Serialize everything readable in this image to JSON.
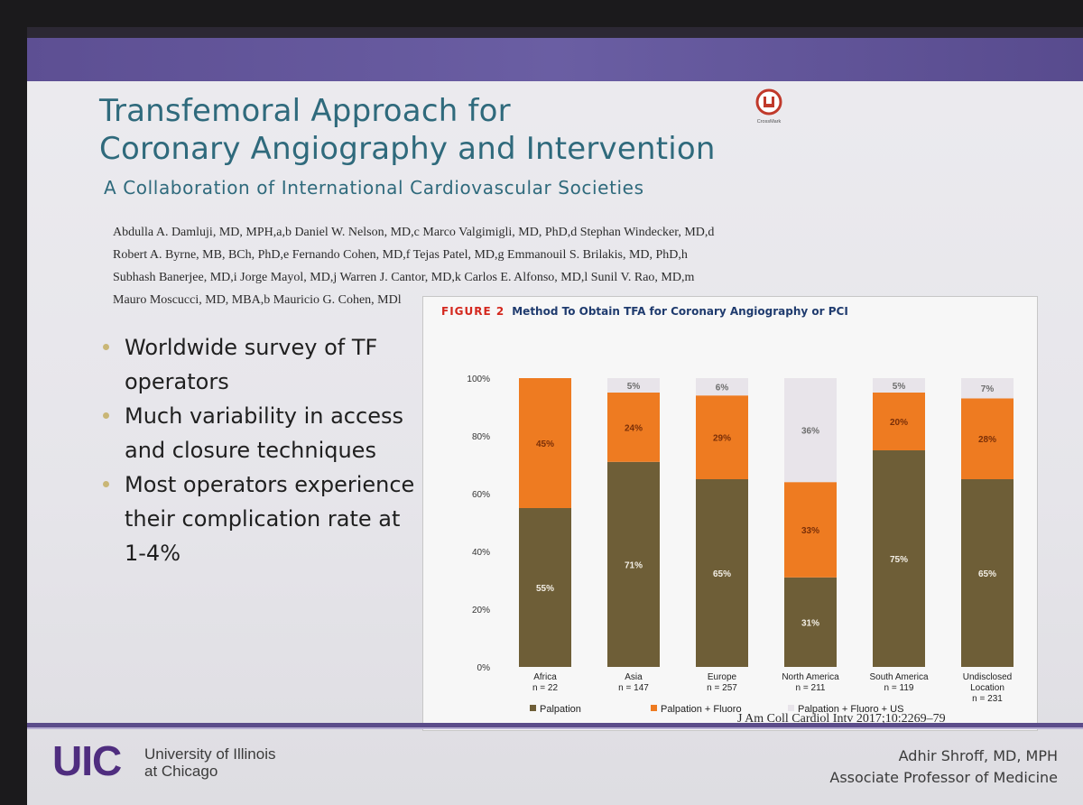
{
  "slide": {
    "title_line1": "Transfemoral Approach for",
    "title_line2": "Coronary Angiography and Intervention",
    "subtitle": "A Collaboration of International Cardiovascular Societies",
    "crossmark_label": "CrossMark",
    "authors": [
      "Abdulla A. Damluji, MD, MPH,a,b Daniel W. Nelson, MD,c Marco Valgimigli, MD, PhD,d Stephan Windecker, MD,d",
      "Robert A. Byrne, MB, BCh, PhD,e Fernando Cohen, MD,f Tejas Patel, MD,g Emmanouil S. Brilakis, MD, PhD,h",
      "Subhash Banerjee, MD,i Jorge Mayol, MD,j Warren J. Cantor, MD,k Carlos E. Alfonso, MD,l Sunil V. Rao, MD,m",
      "Mauro Moscucci, MD, MBA,b Mauricio G. Cohen, MDl"
    ],
    "bullets": [
      "Worldwide survey of TF operators",
      "Much variability in access and closure techniques",
      "Most operators experience their complication rate at 1-4%"
    ],
    "figure_label": "FIGURE 2",
    "figure_title": "Method To Obtain TFA for Coronary Angiography or PCI",
    "citation": "J Am Coll Cardiol Intv 2017;10:2269–79"
  },
  "footer": {
    "logo": "UIC",
    "university_line1": "University of Illinois",
    "university_line2": "at Chicago",
    "presenter_name": "Adhir Shroff, MD, MPH",
    "presenter_title": "Associate Professor of Medicine"
  },
  "colors": {
    "palpation": "#6e5e37",
    "palpation_fluoro": "#ee7b21",
    "palpation_fluoro_us": "#e8e4ea",
    "title": "#2f6a7c",
    "brand_purple": "#4f2d7f"
  },
  "chart_data": {
    "type": "bar",
    "stacked": true,
    "categories": [
      [
        "Africa",
        "n = 22"
      ],
      [
        "Asia",
        "n = 147"
      ],
      [
        "Europe",
        "n = 257"
      ],
      [
        "North America",
        "n = 211"
      ],
      [
        "South America",
        "n = 119"
      ],
      [
        "Undisclosed",
        "Location",
        "n = 231"
      ]
    ],
    "series": [
      {
        "name": "Palpation",
        "values": [
          55,
          71,
          65,
          31,
          75,
          65
        ],
        "labels": [
          "55%",
          "71%",
          "65%",
          "31%",
          "75%",
          "65%"
        ]
      },
      {
        "name": "Palpation + Fluoro",
        "values": [
          45,
          24,
          29,
          33,
          20,
          28
        ],
        "labels": [
          "45%",
          "24%",
          "29%",
          "33%",
          "20%",
          "28%"
        ]
      },
      {
        "name": "Palpation + Fluoro + US",
        "values": [
          0,
          5,
          6,
          36,
          5,
          7
        ],
        "labels": [
          "",
          "5%",
          "6%",
          "36%",
          "5%",
          "7%"
        ]
      }
    ],
    "y_ticks": [
      "0%",
      "20%",
      "40%",
      "60%",
      "80%",
      "100%"
    ],
    "ylim": [
      0,
      100
    ],
    "legend_position": "bottom"
  }
}
